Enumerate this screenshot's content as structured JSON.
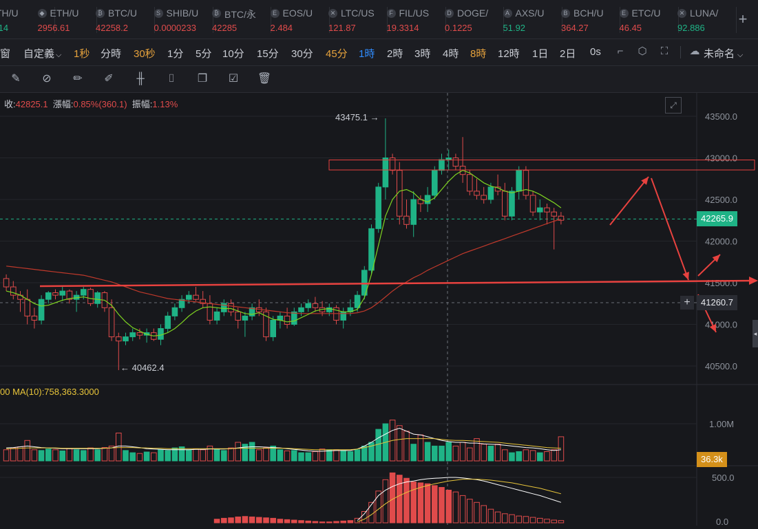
{
  "tickers": [
    {
      "sym": "TH/U",
      "price": ".14",
      "up": true,
      "icon": ""
    },
    {
      "sym": "ETH/U",
      "price": "2956.61",
      "up": false,
      "icon": "◆"
    },
    {
      "sym": "BTC/U",
      "price": "42258.2",
      "up": false,
      "icon": "₿"
    },
    {
      "sym": "SHIB/U",
      "price": "0.0000233",
      "up": false,
      "icon": "S"
    },
    {
      "sym": "BTC/永",
      "price": "42285",
      "up": false,
      "icon": "₿"
    },
    {
      "sym": "EOS/U",
      "price": "2.484",
      "up": false,
      "icon": "E"
    },
    {
      "sym": "LTC/US",
      "price": "121.87",
      "up": false,
      "icon": "✕"
    },
    {
      "sym": "FIL/US",
      "price": "19.3314",
      "up": false,
      "icon": "F"
    },
    {
      "sym": "DOGE/",
      "price": "0.1225",
      "up": false,
      "icon": "D"
    },
    {
      "sym": "AXS/U",
      "price": "51.92",
      "up": true,
      "icon": "A"
    },
    {
      "sym": "BCH/U",
      "price": "364.27",
      "up": false,
      "icon": "B"
    },
    {
      "sym": "ETC/U",
      "price": "46.45",
      "up": false,
      "icon": "E"
    },
    {
      "sym": "LUNA/",
      "price": "92.886",
      "up": true,
      "icon": "✕"
    }
  ],
  "toolbar": {
    "window_label": "窗",
    "custom_label": "自定義",
    "chevron": "⌵",
    "timeframes": [
      {
        "label": "1秒",
        "style": "hl"
      },
      {
        "label": "分時",
        "style": ""
      },
      {
        "label": "30秒",
        "style": "hl"
      },
      {
        "label": "1分",
        "style": ""
      },
      {
        "label": "5分",
        "style": ""
      },
      {
        "label": "10分",
        "style": ""
      },
      {
        "label": "15分",
        "style": ""
      },
      {
        "label": "30分",
        "style": ""
      },
      {
        "label": "45分",
        "style": "hl"
      },
      {
        "label": "1時",
        "style": "active"
      },
      {
        "label": "2時",
        "style": ""
      },
      {
        "label": "3時",
        "style": ""
      },
      {
        "label": "4時",
        "style": ""
      },
      {
        "label": "8時",
        "style": "hl"
      },
      {
        "label": "12時",
        "style": ""
      },
      {
        "label": "1日",
        "style": ""
      },
      {
        "label": "2日",
        "style": ""
      },
      {
        "label": "0s",
        "style": ""
      }
    ],
    "untitled_label": "未命名"
  },
  "ohlc": {
    "close_label": "收:",
    "close": "42825.1",
    "change_label": "漲幅:",
    "change": "0.85%(360.1)",
    "amp_label": "振幅:",
    "amp": "1.13%"
  },
  "colors": {
    "up": "#1fb386",
    "down": "#e04b4b",
    "ma_short": "#7ed321",
    "ma_long": "#c0392b",
    "annot": "#e8423f",
    "vol_ma_a": "#ffffff",
    "vol_ma_b": "#e8c53a"
  },
  "price_axis": [
    "43500.0",
    "43000.0",
    "42500.0",
    "42000.0",
    "41500.0",
    "41000.0",
    "40500.0"
  ],
  "current_price": "42265.9",
  "crosshair_price": "41260.7",
  "high_label": "43475.1 →",
  "low_label": "← 40462.4",
  "volume_legend": "00  MA(10):758,363.3000",
  "volume_axis": [
    "1.00M"
  ],
  "current_volume": "36.3k",
  "macd_axis": [
    "500.0",
    "0.0"
  ],
  "chart_data": {
    "type": "candlestick",
    "price_range": [
      40300,
      43700
    ],
    "candles": [
      [
        41550,
        41600,
        41400,
        41450
      ],
      [
        41450,
        41520,
        41300,
        41350
      ],
      [
        41350,
        41400,
        41150,
        41300
      ],
      [
        41300,
        41420,
        41000,
        41100
      ],
      [
        41100,
        41200,
        40950,
        41050
      ],
      [
        41050,
        41350,
        41000,
        41300
      ],
      [
        41300,
        41400,
        41250,
        41380
      ],
      [
        41380,
        41420,
        41300,
        41350
      ],
      [
        41350,
        41450,
        41280,
        41400
      ],
      [
        41400,
        41420,
        41250,
        41300
      ],
      [
        41300,
        41400,
        41150,
        41350
      ],
      [
        41350,
        41450,
        41300,
        41420
      ],
      [
        41420,
        41440,
        41220,
        41250
      ],
      [
        41250,
        41400,
        41200,
        41380
      ],
      [
        41380,
        41400,
        41150,
        41200
      ],
      [
        41200,
        41300,
        40800,
        40850
      ],
      [
        40850,
        40900,
        40450,
        40800
      ],
      [
        40800,
        40900,
        40750,
        40850
      ],
      [
        40850,
        40950,
        40800,
        40900
      ],
      [
        40900,
        40950,
        40820,
        40870
      ],
      [
        40870,
        40950,
        40780,
        40900
      ],
      [
        40900,
        40950,
        40800,
        40820
      ],
      [
        40820,
        41000,
        40750,
        40950
      ],
      [
        40950,
        41150,
        40900,
        41100
      ],
      [
        41100,
        41250,
        41050,
        41200
      ],
      [
        41200,
        41350,
        41150,
        41300
      ],
      [
        41300,
        41400,
        41250,
        41350
      ],
      [
        41350,
        41450,
        41280,
        41300
      ],
      [
        41300,
        41400,
        41200,
        41250
      ],
      [
        41250,
        41350,
        41000,
        41050
      ],
      [
        41050,
        41200,
        41000,
        41150
      ],
      [
        41150,
        41300,
        41100,
        41250
      ],
      [
        41250,
        41300,
        41100,
        41150
      ],
      [
        41150,
        41200,
        40950,
        41050
      ],
      [
        41050,
        41150,
        40850,
        41100
      ],
      [
        41100,
        41250,
        41050,
        41200
      ],
      [
        41200,
        41300,
        41100,
        41150
      ],
      [
        41150,
        41200,
        40800,
        40850
      ],
      [
        40850,
        41100,
        40800,
        41050
      ],
      [
        41050,
        41150,
        40950,
        41100
      ],
      [
        41100,
        41200,
        40950,
        41000
      ],
      [
        41000,
        41200,
        40980,
        41150
      ],
      [
        41150,
        41250,
        41100,
        41200
      ],
      [
        41200,
        41300,
        41150,
        41250
      ],
      [
        41250,
        41330,
        41150,
        41200
      ],
      [
        41200,
        41280,
        41100,
        41150
      ],
      [
        41150,
        41250,
        41100,
        41200
      ],
      [
        41200,
        41230,
        41000,
        41050
      ],
      [
        41050,
        41200,
        40950,
        41150
      ],
      [
        41150,
        41300,
        41100,
        41200
      ],
      [
        41200,
        41400,
        41150,
        41350
      ],
      [
        41350,
        41700,
        41300,
        41650
      ],
      [
        41650,
        42200,
        41600,
        42150
      ],
      [
        42150,
        42700,
        42100,
        42650
      ],
      [
        42650,
        43475,
        42500,
        43000
      ],
      [
        43000,
        43050,
        42800,
        42850
      ],
      [
        42850,
        42950,
        42200,
        42300
      ],
      [
        42300,
        42500,
        42150,
        42200
      ],
      [
        42200,
        42600,
        42050,
        42500
      ],
      [
        42500,
        42550,
        42350,
        42450
      ],
      [
        42450,
        42650,
        42350,
        42550
      ],
      [
        42550,
        42900,
        42500,
        42850
      ],
      [
        42850,
        43050,
        42800,
        42980
      ],
      [
        42980,
        43100,
        42850,
        43000
      ],
      [
        43000,
        43050,
        42850,
        42900
      ],
      [
        42900,
        43250,
        42700,
        42800
      ],
      [
        42800,
        42850,
        42550,
        42600
      ],
      [
        42600,
        42750,
        42500,
        42550
      ],
      [
        42550,
        42650,
        42450,
        42500
      ],
      [
        42500,
        42700,
        42450,
        42650
      ],
      [
        42650,
        42800,
        42550,
        42600
      ],
      [
        42600,
        42700,
        42250,
        42300
      ],
      [
        42300,
        42650,
        42250,
        42600
      ],
      [
        42600,
        42900,
        42500,
        42850
      ],
      [
        42850,
        42900,
        42500,
        42550
      ],
      [
        42550,
        42600,
        42300,
        42350
      ],
      [
        42350,
        42500,
        42250,
        42400
      ],
      [
        42400,
        42450,
        42200,
        42350
      ],
      [
        42350,
        42400,
        41900,
        42300
      ],
      [
        42300,
        42350,
        42200,
        42250
      ]
    ],
    "ma_short": [
      41400,
      41380,
      41350,
      41300,
      41250,
      41220,
      41230,
      41260,
      41290,
      41310,
      41320,
      41330,
      41310,
      41300,
      41290,
      41230,
      41120,
      41030,
      40960,
      40920,
      40880,
      40860,
      40870,
      40900,
      40950,
      41020,
      41100,
      41160,
      41200,
      41210,
      41200,
      41190,
      41190,
      41160,
      41130,
      41120,
      41140,
      41100,
      41060,
      41050,
      41030,
      41040,
      41080,
      41120,
      41160,
      41180,
      41190,
      41170,
      41150,
      41150,
      41180,
      41320,
      41600,
      41950,
      42300,
      42500,
      42600,
      42620,
      42580,
      42500,
      42470,
      42520,
      42620,
      42720,
      42800,
      42850,
      42820,
      42760,
      42700,
      42660,
      42640,
      42600,
      42580,
      42600,
      42620,
      42600,
      42560,
      42510,
      42460,
      42400
    ],
    "ma_long": [
      41700,
      41690,
      41680,
      41670,
      41660,
      41650,
      41640,
      41630,
      41620,
      41610,
      41600,
      41590,
      41570,
      41550,
      41530,
      41510,
      41480,
      41450,
      41420,
      41390,
      41370,
      41350,
      41330,
      41310,
      41300,
      41290,
      41280,
      41270,
      41260,
      41250,
      41240,
      41230,
      41220,
      41210,
      41200,
      41190,
      41180,
      41170,
      41160,
      41150,
      41140,
      41135,
      41130,
      41130,
      41130,
      41130,
      41130,
      41130,
      41130,
      41130,
      41140,
      41160,
      41200,
      41260,
      41330,
      41400,
      41460,
      41510,
      41560,
      41600,
      41650,
      41690,
      41730,
      41770,
      41810,
      41850,
      41880,
      41910,
      41940,
      41970,
      42000,
      42030,
      42060,
      42090,
      42120,
      42150,
      42180,
      42210,
      42240,
      42265
    ],
    "volume": [
      0.3,
      0.35,
      0.38,
      0.55,
      0.3,
      0.28,
      0.32,
      0.3,
      0.27,
      0.33,
      0.3,
      0.28,
      0.35,
      0.3,
      0.36,
      0.4,
      0.75,
      0.28,
      0.22,
      0.2,
      0.24,
      0.22,
      0.3,
      0.28,
      0.35,
      0.38,
      0.3,
      0.32,
      0.3,
      0.4,
      0.32,
      0.28,
      0.35,
      0.5,
      0.45,
      0.5,
      0.3,
      0.35,
      0.4,
      0.3,
      0.27,
      0.28,
      0.22,
      0.22,
      0.25,
      0.32,
      0.3,
      0.3,
      0.28,
      0.25,
      0.3,
      0.4,
      0.5,
      0.85,
      1.0,
      1.1,
      0.95,
      0.8,
      0.45,
      0.7,
      0.5,
      0.4,
      0.4,
      0.5,
      0.4,
      0.5,
      0.35,
      0.6,
      0.45,
      0.4,
      0.45,
      0.3,
      0.22,
      0.25,
      0.3,
      0.28,
      0.22,
      0.25,
      0.3,
      0.65
    ],
    "volume_ma_a": [
      0.35,
      0.36,
      0.38,
      0.4,
      0.38,
      0.36,
      0.35,
      0.34,
      0.33,
      0.33,
      0.33,
      0.33,
      0.33,
      0.33,
      0.34,
      0.35,
      0.4,
      0.4,
      0.38,
      0.36,
      0.33,
      0.32,
      0.31,
      0.3,
      0.3,
      0.3,
      0.3,
      0.31,
      0.31,
      0.32,
      0.32,
      0.32,
      0.33,
      0.35,
      0.37,
      0.38,
      0.38,
      0.37,
      0.36,
      0.35,
      0.33,
      0.31,
      0.29,
      0.27,
      0.26,
      0.26,
      0.27,
      0.28,
      0.28,
      0.28,
      0.32,
      0.4,
      0.5,
      0.62,
      0.72,
      0.82,
      0.88,
      0.8,
      0.72,
      0.7,
      0.65,
      0.6,
      0.55,
      0.52,
      0.5,
      0.5,
      0.48,
      0.48,
      0.46,
      0.45,
      0.44,
      0.42,
      0.4,
      0.38,
      0.36,
      0.35,
      0.33,
      0.3,
      0.28,
      0.3
    ],
    "volume_ma_b": [
      0.33,
      0.33,
      0.34,
      0.35,
      0.35,
      0.35,
      0.35,
      0.35,
      0.34,
      0.34,
      0.34,
      0.34,
      0.34,
      0.34,
      0.34,
      0.35,
      0.36,
      0.36,
      0.36,
      0.35,
      0.35,
      0.34,
      0.34,
      0.33,
      0.33,
      0.33,
      0.33,
      0.33,
      0.33,
      0.33,
      0.33,
      0.33,
      0.33,
      0.34,
      0.34,
      0.34,
      0.34,
      0.34,
      0.34,
      0.34,
      0.34,
      0.33,
      0.32,
      0.31,
      0.3,
      0.3,
      0.3,
      0.3,
      0.3,
      0.3,
      0.32,
      0.36,
      0.4,
      0.45,
      0.5,
      0.55,
      0.58,
      0.6,
      0.6,
      0.6,
      0.6,
      0.6,
      0.58,
      0.56,
      0.55,
      0.55,
      0.54,
      0.53,
      0.52,
      0.51,
      0.5,
      0.48,
      0.46,
      0.44,
      0.42,
      0.4,
      0.38,
      0.36,
      0.35,
      0.34
    ],
    "macd_hist": [
      0.0,
      0.0,
      0.0,
      0.0,
      0.0,
      0.0,
      0.0,
      0.0,
      0.0,
      0.0,
      0.0,
      0.0,
      0.0,
      0.0,
      0.0,
      0.0,
      0.0,
      0.0,
      0.0,
      0.0,
      0.0,
      0.0,
      0.0,
      0.0,
      0.0,
      0.0,
      0.0,
      0.0,
      0.0,
      0.0,
      0.08,
      0.1,
      0.11,
      0.13,
      0.14,
      0.13,
      0.12,
      0.11,
      0.1,
      0.08,
      0.07,
      0.06,
      0.05,
      0.04,
      0.03,
      0.02,
      0.02,
      0.03,
      0.04,
      0.05,
      0.1,
      0.25,
      0.45,
      0.7,
      0.95,
      1.1,
      1.05,
      0.98,
      0.9,
      0.88,
      0.86,
      0.82,
      0.78,
      0.72,
      0.68,
      0.6,
      0.52,
      0.45,
      0.38,
      0.3,
      0.24,
      0.2,
      0.18,
      0.15,
      0.14,
      0.12,
      0.1,
      0.08,
      0.06,
      0.05
    ],
    "macd_line_a": [
      0.0,
      0.0,
      0.0,
      0.0,
      0.0,
      0.0,
      0.0,
      0.0,
      0.0,
      0.0,
      0.0,
      0.0,
      0.0,
      0.0,
      0.0,
      0.0,
      0.0,
      0.0,
      0.0,
      0.0,
      0.0,
      0.0,
      0.0,
      0.0,
      0.0,
      0.0,
      0.0,
      0.0,
      0.0,
      0.0,
      0.0,
      0.0,
      0.0,
      0.0,
      0.0,
      0.0,
      0.0,
      0.0,
      0.0,
      0.0,
      0.0,
      0.0,
      0.0,
      0.0,
      0.0,
      0.0,
      0.0,
      0.0,
      0.0,
      0.0,
      0.05,
      0.2,
      0.4,
      0.6,
      0.72,
      0.8,
      0.86,
      0.9,
      0.92,
      0.95,
      0.97,
      0.98,
      0.99,
      1.0,
      1.0,
      0.99,
      0.97,
      0.95,
      0.92,
      0.88,
      0.84,
      0.8,
      0.76,
      0.72,
      0.68,
      0.64,
      0.6,
      0.55,
      0.5,
      0.45
    ],
    "macd_line_b": [
      0.0,
      0.0,
      0.0,
      0.0,
      0.0,
      0.0,
      0.0,
      0.0,
      0.0,
      0.0,
      0.0,
      0.0,
      0.0,
      0.0,
      0.0,
      0.0,
      0.0,
      0.0,
      0.0,
      0.0,
      0.0,
      0.0,
      0.0,
      0.0,
      0.0,
      0.0,
      0.0,
      0.0,
      0.0,
      0.0,
      0.0,
      0.0,
      0.0,
      0.0,
      0.0,
      0.0,
      0.0,
      0.0,
      0.0,
      0.0,
      0.0,
      0.0,
      0.0,
      0.0,
      0.0,
      0.0,
      0.0,
      0.0,
      0.0,
      0.0,
      0.02,
      0.08,
      0.18,
      0.3,
      0.42,
      0.52,
      0.6,
      0.67,
      0.73,
      0.78,
      0.82,
      0.86,
      0.89,
      0.92,
      0.94,
      0.96,
      0.96,
      0.96,
      0.95,
      0.94,
      0.92,
      0.9,
      0.88,
      0.85,
      0.82,
      0.79,
      0.76,
      0.72,
      0.68,
      0.64
    ]
  }
}
